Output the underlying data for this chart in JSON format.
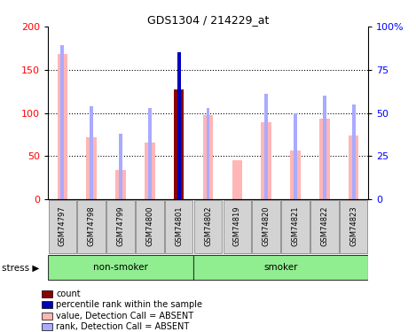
{
  "title": "GDS1304 / 214229_at",
  "samples": [
    "GSM74797",
    "GSM74798",
    "GSM74799",
    "GSM74800",
    "GSM74801",
    "GSM74802",
    "GSM74819",
    "GSM74820",
    "GSM74821",
    "GSM74822",
    "GSM74823"
  ],
  "value_absent": [
    168,
    72,
    34,
    66,
    0,
    97,
    45,
    89,
    56,
    93,
    74
  ],
  "rank_absent": [
    89,
    54,
    38,
    53,
    0,
    53,
    0,
    61,
    50,
    60,
    55
  ],
  "count": [
    0,
    0,
    0,
    0,
    127,
    0,
    0,
    0,
    0,
    0,
    0
  ],
  "percentile_rank": [
    0,
    0,
    0,
    0,
    85,
    0,
    0,
    0,
    0,
    0,
    0
  ],
  "ns_count": 5,
  "ylim_left": [
    0,
    200
  ],
  "ylim_right": [
    0,
    100
  ],
  "yticks_left": [
    0,
    50,
    100,
    150,
    200
  ],
  "yticks_right": [
    0,
    25,
    50,
    75,
    100
  ],
  "ytick_labels_right": [
    "0",
    "25",
    "50",
    "75",
    "100%"
  ],
  "color_count": "#8B0000",
  "color_percentile": "#0000BB",
  "color_value_absent": "#FFB6B6",
  "color_rank_absent": "#AAAAFF",
  "group_color": "#90EE90",
  "bar_bg_color": "#D3D3D3",
  "thin_bar_width": 0.12,
  "wide_bar_width": 0.35
}
